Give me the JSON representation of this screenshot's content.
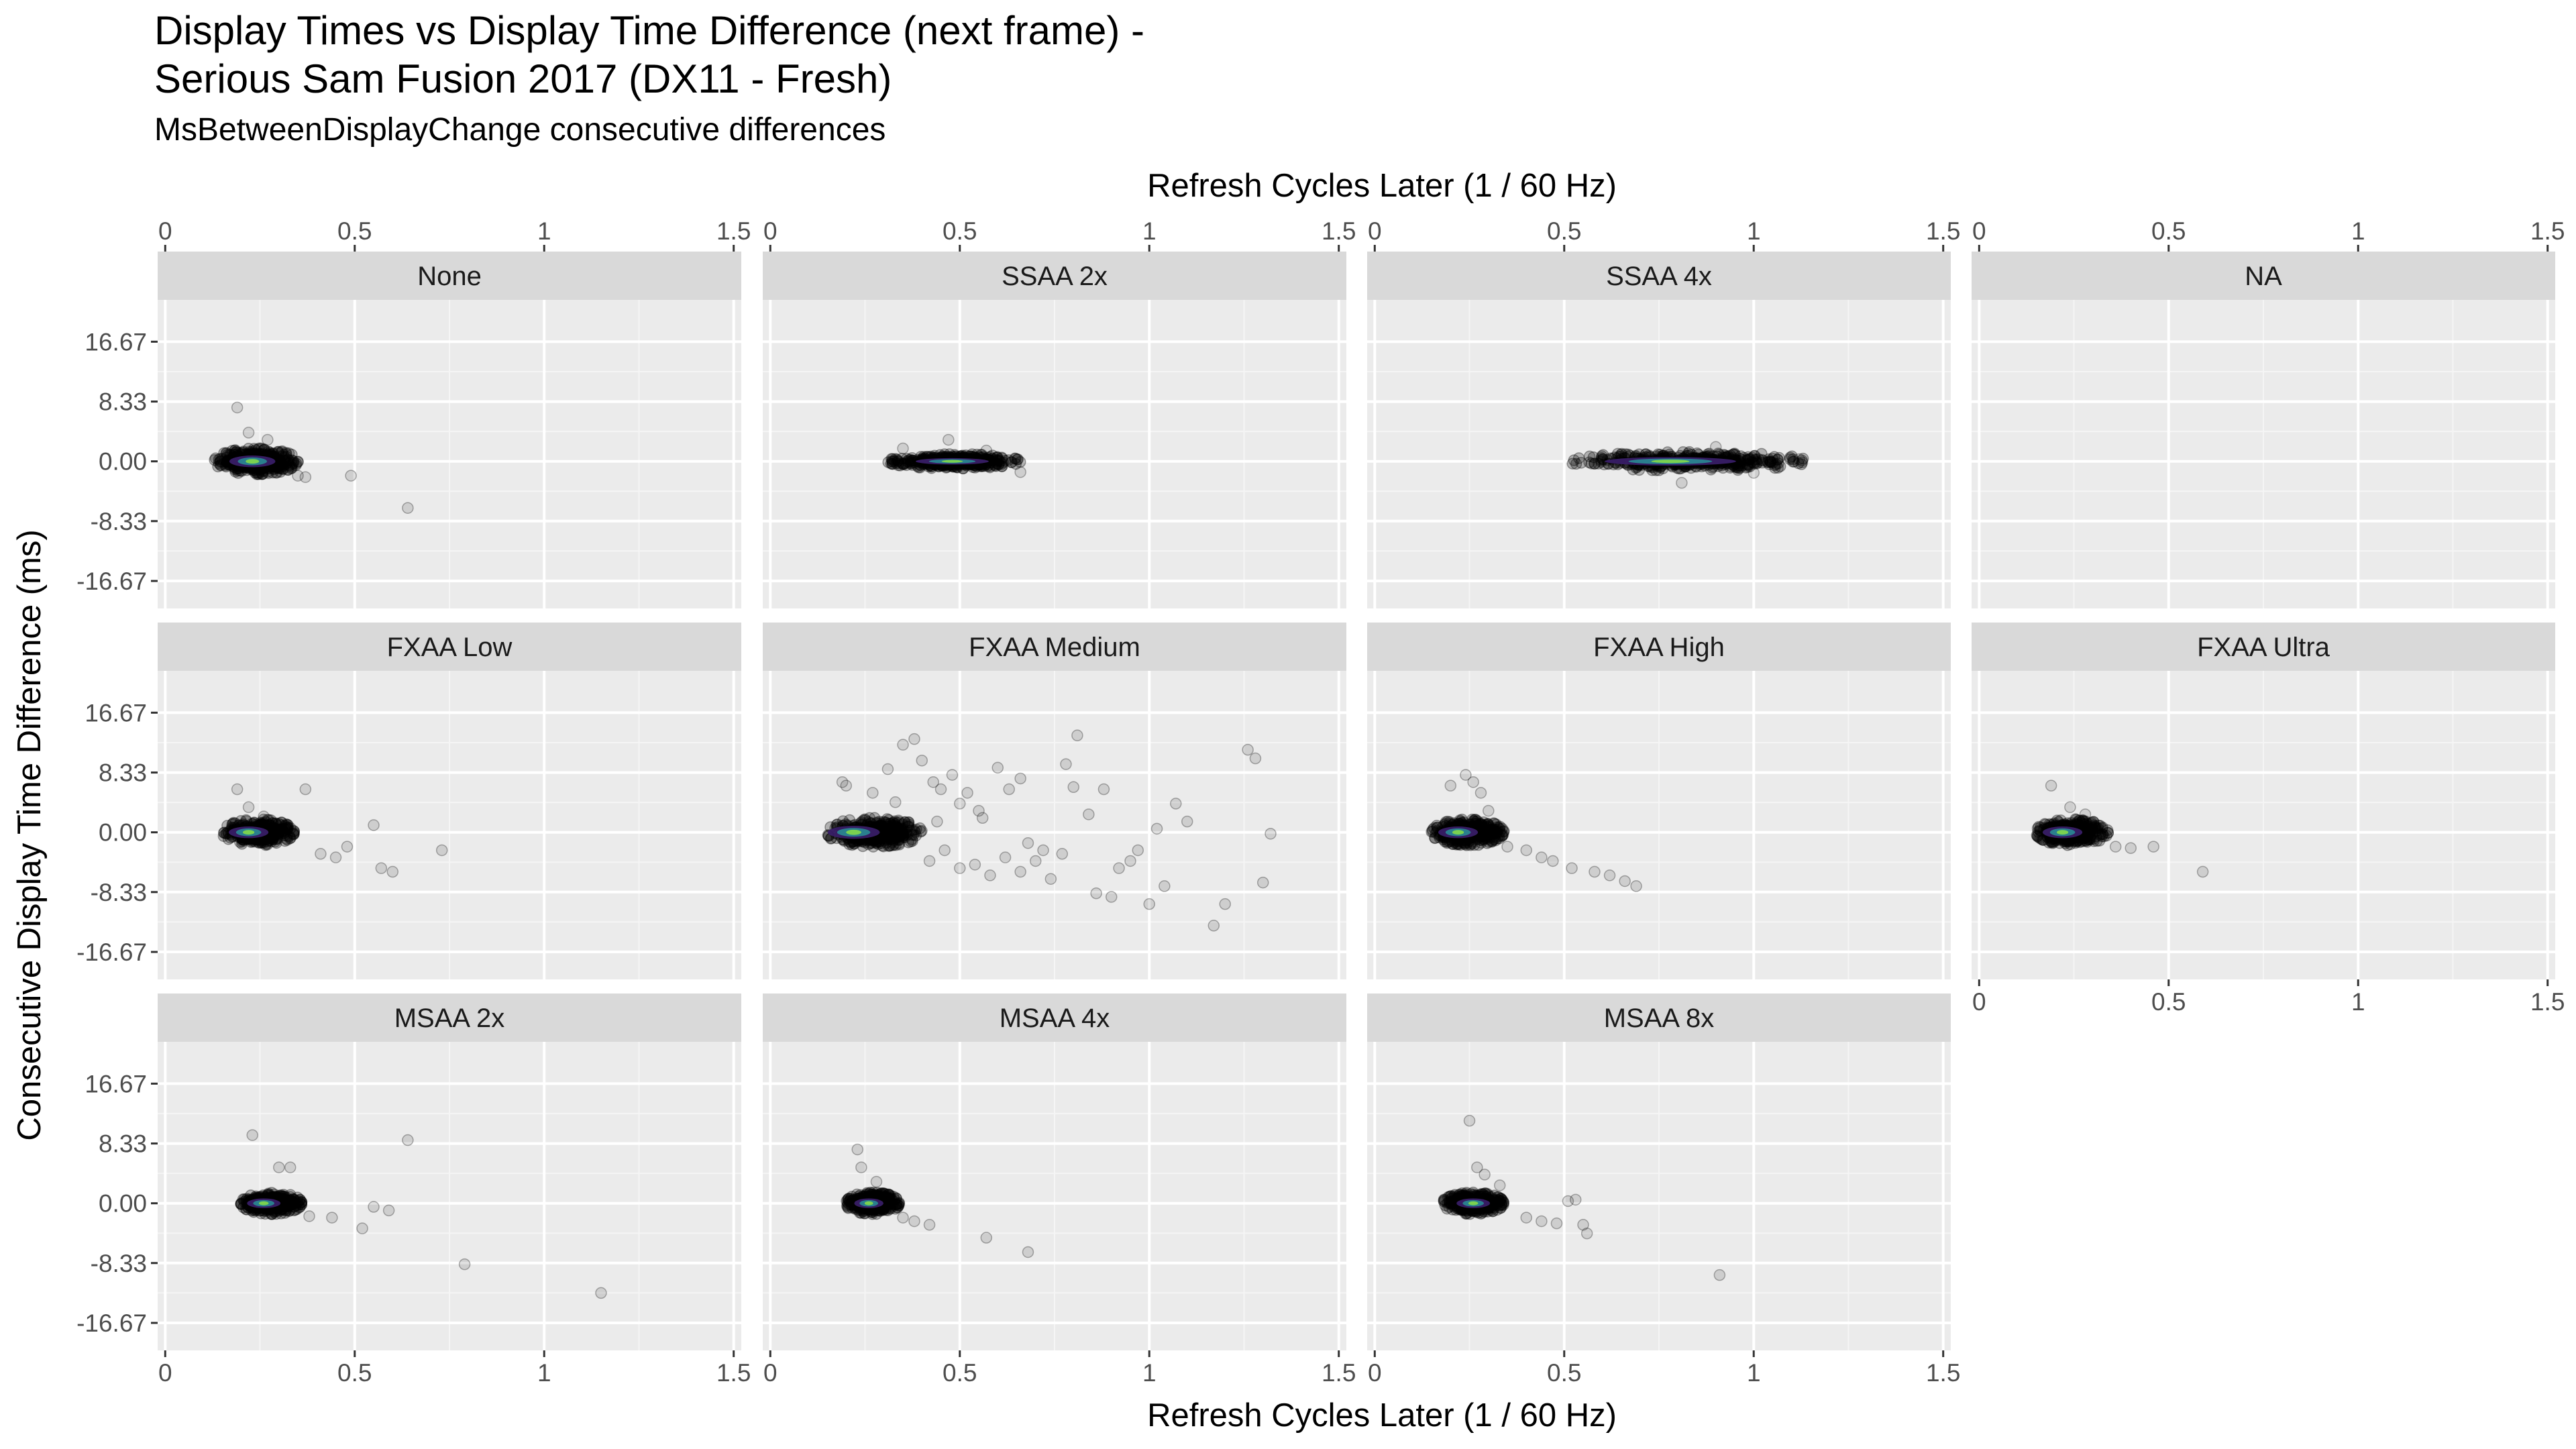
{
  "chart_data": {
    "type": "scatter",
    "title_line1": "Display Times vs Display Time Difference (next frame) -",
    "title_line2": "Serious Sam Fusion 2017 (DX11 - Fresh)",
    "subtitle": "MsBetweenDisplayChange consecutive differences",
    "xlabel": "Refresh Cycles Later (1 / 60 Hz)",
    "ylabel": "Consecutive Display Time Difference (ms)",
    "xlim": [
      -0.02,
      1.52
    ],
    "ylim": [
      -20.5,
      22.5
    ],
    "x_ticks": [
      0,
      0.5,
      1,
      1.5
    ],
    "x_tick_labels": [
      "0",
      "0.5",
      "1",
      "1.5"
    ],
    "y_ticks": [
      16.67,
      8.33,
      0,
      -8.33,
      -16.67
    ],
    "y_tick_labels": [
      "16.67",
      "8.33",
      "0.00",
      "-8.33",
      "-16.67"
    ],
    "grid": true,
    "panels": [
      {
        "name": "None",
        "cluster": {
          "x": [
            0.13,
            0.35
          ],
          "y": [
            -1.8,
            1.8
          ],
          "core": [
            0.23,
            0.0
          ]
        },
        "outliers": [
          [
            0.19,
            7.5
          ],
          [
            0.22,
            4.0
          ],
          [
            0.27,
            3.0
          ],
          [
            0.35,
            -2.0
          ],
          [
            0.37,
            -2.2
          ],
          [
            0.49,
            -2.0
          ],
          [
            0.64,
            -6.5
          ]
        ]
      },
      {
        "name": "SSAA 2x",
        "cluster": {
          "x": [
            0.31,
            0.66
          ],
          "y": [
            -1.0,
            1.0
          ],
          "core": [
            0.48,
            0.0
          ]
        },
        "outliers": [
          [
            0.35,
            1.8
          ],
          [
            0.47,
            3.0
          ],
          [
            0.57,
            1.5
          ],
          [
            0.66,
            -1.5
          ]
        ]
      },
      {
        "name": "SSAA 4x",
        "cluster": {
          "x": [
            0.52,
            1.15
          ],
          "y": [
            -1.3,
            1.3
          ],
          "core": [
            0.78,
            0.0
          ]
        },
        "outliers": [
          [
            0.81,
            -3.0
          ],
          [
            0.9,
            2.0
          ],
          [
            1.0,
            -1.6
          ],
          [
            1.12,
            0.3
          ]
        ]
      },
      {
        "name": "NA",
        "cluster": null,
        "outliers": [],
        "x_axis_bottom": false
      },
      {
        "name": "FXAA Low",
        "cluster": {
          "x": [
            0.15,
            0.34
          ],
          "y": [
            -1.8,
            1.8
          ],
          "core": [
            0.22,
            0.0
          ]
        },
        "outliers": [
          [
            0.19,
            6.0
          ],
          [
            0.22,
            3.5
          ],
          [
            0.26,
            2.2
          ],
          [
            0.37,
            6.0
          ],
          [
            0.41,
            -3.0
          ],
          [
            0.45,
            -3.5
          ],
          [
            0.48,
            -2.0
          ],
          [
            0.55,
            1.0
          ],
          [
            0.57,
            -5.0
          ],
          [
            0.6,
            -5.5
          ],
          [
            0.73,
            -2.5
          ]
        ]
      },
      {
        "name": "FXAA Medium",
        "cluster": {
          "x": [
            0.15,
            0.4
          ],
          "y": [
            -2.0,
            2.0
          ],
          "core": [
            0.22,
            0.0
          ]
        },
        "outliers": [
          [
            0.19,
            7.0
          ],
          [
            0.2,
            6.5
          ],
          [
            0.27,
            5.5
          ],
          [
            0.31,
            8.8
          ],
          [
            0.33,
            4.2
          ],
          [
            0.35,
            12.2
          ],
          [
            0.38,
            13.0
          ],
          [
            0.4,
            10.0
          ],
          [
            0.43,
            7.0
          ],
          [
            0.45,
            6.0
          ],
          [
            0.48,
            8.0
          ],
          [
            0.5,
            4.0
          ],
          [
            0.52,
            5.5
          ],
          [
            0.55,
            3.0
          ],
          [
            0.6,
            9.0
          ],
          [
            0.63,
            6.0
          ],
          [
            0.66,
            7.5
          ],
          [
            0.78,
            9.5
          ],
          [
            0.8,
            6.3
          ],
          [
            0.81,
            13.5
          ],
          [
            0.84,
            2.5
          ],
          [
            0.88,
            6.0
          ],
          [
            0.92,
            -5.0
          ],
          [
            0.95,
            -4.0
          ],
          [
            1.0,
            -10.0
          ],
          [
            1.04,
            -7.5
          ],
          [
            1.07,
            4.0
          ],
          [
            1.1,
            1.5
          ],
          [
            1.17,
            -13.0
          ],
          [
            1.2,
            -10.0
          ],
          [
            1.26,
            11.5
          ],
          [
            1.28,
            10.3
          ],
          [
            1.3,
            -7.0
          ],
          [
            1.32,
            -0.2
          ],
          [
            0.42,
            -4.0
          ],
          [
            0.46,
            -2.5
          ],
          [
            0.5,
            -5.0
          ],
          [
            0.54,
            -4.5
          ],
          [
            0.58,
            -6.0
          ],
          [
            0.62,
            -3.5
          ],
          [
            0.66,
            -5.5
          ],
          [
            0.7,
            -4.0
          ],
          [
            0.74,
            -6.5
          ],
          [
            0.77,
            -3.0
          ],
          [
            0.86,
            -8.5
          ],
          [
            0.9,
            -9.0
          ],
          [
            0.97,
            -2.5
          ],
          [
            1.02,
            0.5
          ],
          [
            0.44,
            1.5
          ],
          [
            0.56,
            2.0
          ],
          [
            0.68,
            -1.5
          ],
          [
            0.72,
            -2.5
          ]
        ]
      },
      {
        "name": "FXAA High",
        "cluster": {
          "x": [
            0.15,
            0.34
          ],
          "y": [
            -1.8,
            1.8
          ],
          "core": [
            0.22,
            0.0
          ]
        },
        "outliers": [
          [
            0.2,
            6.5
          ],
          [
            0.24,
            8.0
          ],
          [
            0.26,
            7.0
          ],
          [
            0.28,
            5.5
          ],
          [
            0.3,
            3.0
          ],
          [
            0.35,
            -2.0
          ],
          [
            0.4,
            -2.5
          ],
          [
            0.44,
            -3.5
          ],
          [
            0.47,
            -4.0
          ],
          [
            0.52,
            -5.0
          ],
          [
            0.58,
            -5.5
          ],
          [
            0.62,
            -6.0
          ],
          [
            0.66,
            -6.8
          ],
          [
            0.69,
            -7.5
          ]
        ]
      },
      {
        "name": "FXAA Ultra",
        "cluster": {
          "x": [
            0.15,
            0.34
          ],
          "y": [
            -1.8,
            1.8
          ],
          "core": [
            0.22,
            0.0
          ]
        },
        "outliers": [
          [
            0.19,
            6.5
          ],
          [
            0.24,
            3.5
          ],
          [
            0.28,
            2.5
          ],
          [
            0.36,
            -2.0
          ],
          [
            0.4,
            -2.2
          ],
          [
            0.46,
            -2.0
          ],
          [
            0.59,
            -5.5
          ]
        ],
        "x_axis_bottom": true
      },
      {
        "name": "MSAA 2x",
        "cluster": {
          "x": [
            0.2,
            0.36
          ],
          "y": [
            -1.5,
            1.5
          ],
          "core": [
            0.26,
            0.0
          ]
        },
        "outliers": [
          [
            0.23,
            9.5
          ],
          [
            0.3,
            5.0
          ],
          [
            0.33,
            5.0
          ],
          [
            0.38,
            -1.8
          ],
          [
            0.44,
            -2.0
          ],
          [
            0.52,
            -3.5
          ],
          [
            0.55,
            -0.5
          ],
          [
            0.59,
            -1.0
          ],
          [
            0.64,
            8.8
          ],
          [
            0.79,
            -8.5
          ],
          [
            1.15,
            -12.5
          ]
        ]
      },
      {
        "name": "MSAA 4x",
        "cluster": {
          "x": [
            0.2,
            0.34
          ],
          "y": [
            -1.5,
            1.5
          ],
          "core": [
            0.26,
            0.0
          ]
        },
        "outliers": [
          [
            0.23,
            7.5
          ],
          [
            0.24,
            5.0
          ],
          [
            0.28,
            3.0
          ],
          [
            0.35,
            -2.0
          ],
          [
            0.38,
            -2.5
          ],
          [
            0.42,
            -3.0
          ],
          [
            0.57,
            -4.8
          ],
          [
            0.68,
            -6.8
          ]
        ]
      },
      {
        "name": "MSAA 8x",
        "cluster": {
          "x": [
            0.18,
            0.34
          ],
          "y": [
            -1.5,
            1.5
          ],
          "core": [
            0.26,
            0.0
          ]
        },
        "outliers": [
          [
            0.25,
            11.5
          ],
          [
            0.27,
            5.0
          ],
          [
            0.29,
            4.0
          ],
          [
            0.33,
            2.5
          ],
          [
            0.4,
            -2.0
          ],
          [
            0.44,
            -2.5
          ],
          [
            0.48,
            -2.8
          ],
          [
            0.51,
            0.3
          ],
          [
            0.53,
            0.5
          ],
          [
            0.55,
            -3.0
          ],
          [
            0.56,
            -4.2
          ],
          [
            0.91,
            -10.0
          ]
        ]
      }
    ]
  }
}
